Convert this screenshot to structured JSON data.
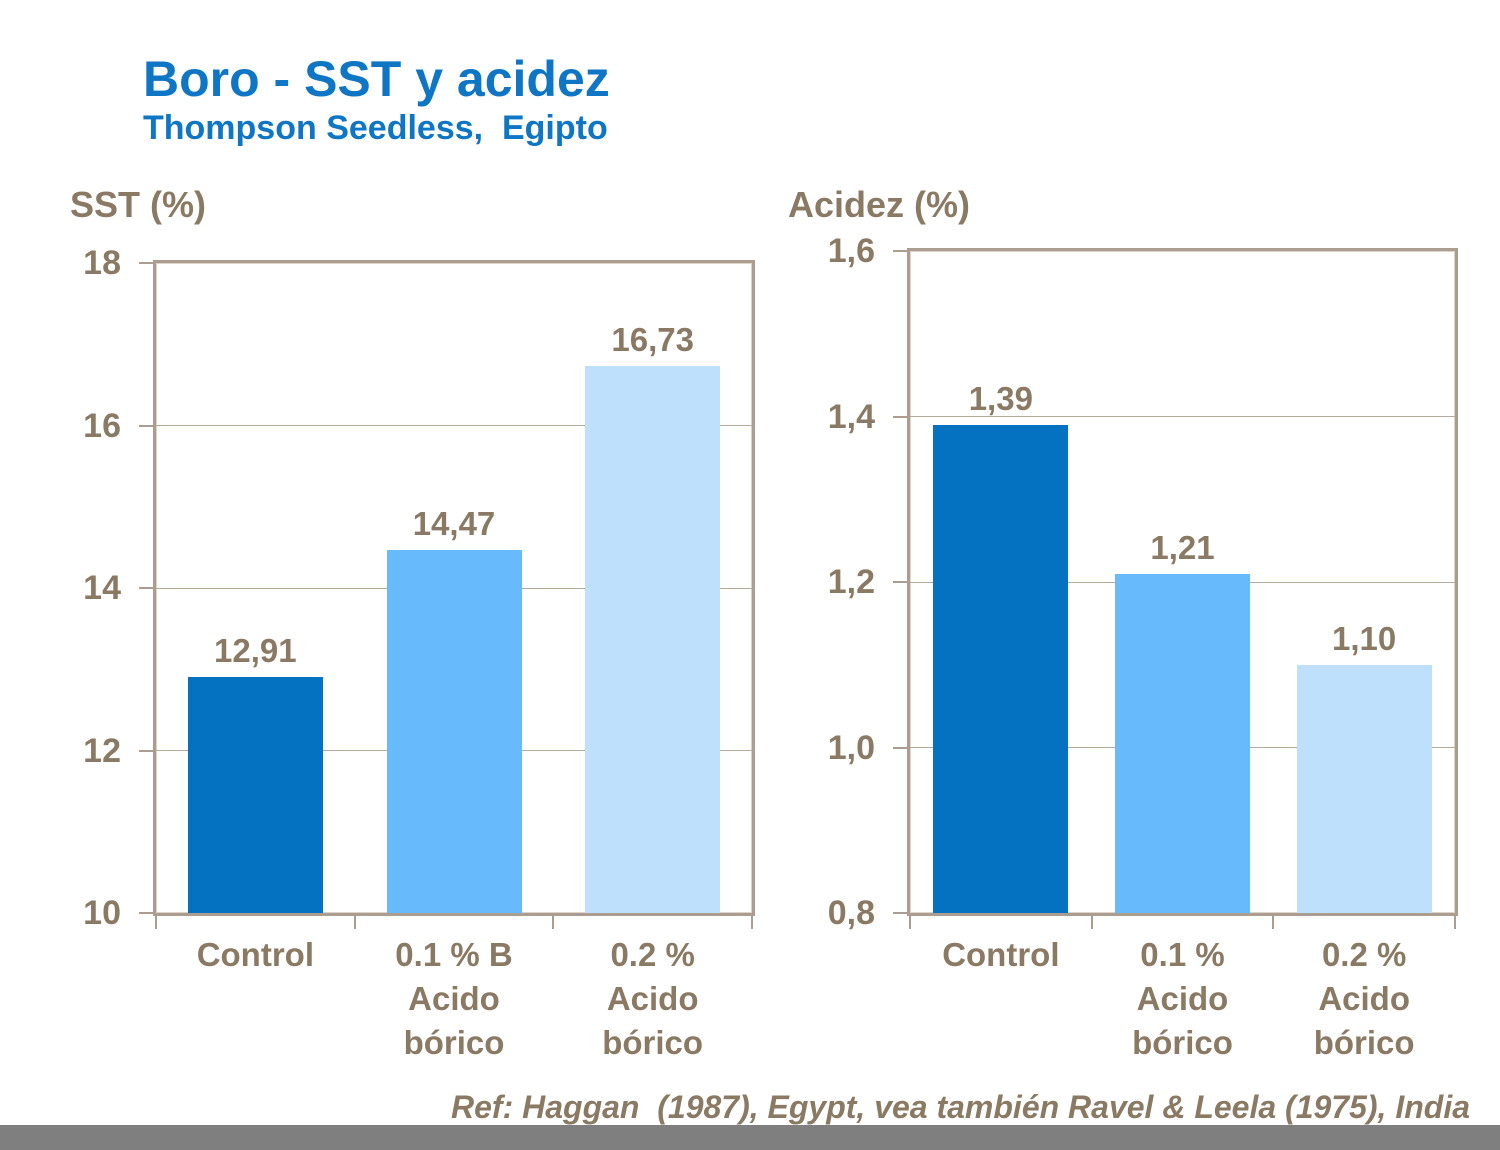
{
  "slide": {
    "title": "Boro - SST y acidez",
    "subtitle": "Thompson Seedless,  Egipto",
    "reference": "Ref: Haggan  (1987), Egypt, vea también Ravel & Leela (1975), India"
  },
  "colors": {
    "title_blue": "#0E76C4",
    "text_brown": "#8A7A64",
    "axis_line": "#AB9E90",
    "gridline": "#B5A99B",
    "footer_gray": "#7F7F7F",
    "bar_dark_blue": "#0571C1",
    "bar_medium_blue": "#67BBFC",
    "bar_light_blue": "#BEE0FC"
  },
  "chart_data": [
    {
      "type": "bar",
      "title": "SST (%)",
      "categories": [
        "Control",
        "0.1 % B Acido bórico",
        "0.2 % Acido bórico"
      ],
      "category_lines": [
        [
          "Control"
        ],
        [
          "0.1 % B",
          "Acido",
          "bórico"
        ],
        [
          "0.2 %",
          "Acido",
          "bórico"
        ]
      ],
      "values": [
        12.91,
        14.47,
        16.73
      ],
      "value_labels": [
        "12,91",
        "14,47",
        "16,73"
      ],
      "bar_colors": [
        "#0571C1",
        "#67BBFC",
        "#BEE0FC"
      ],
      "ylim": [
        10,
        18
      ],
      "ytick_interval": 2,
      "yticks": [
        "18",
        "16",
        "14",
        "12",
        "10"
      ],
      "grid": true,
      "legend": "none"
    },
    {
      "type": "bar",
      "title": "Acidez (%)",
      "categories": [
        "Control",
        "0.1 % Acido bórico",
        "0.2 % Acido bórico"
      ],
      "category_lines": [
        [
          "Control"
        ],
        [
          "0.1 %",
          "Acido",
          "bórico"
        ],
        [
          "0.2 %",
          "Acido",
          "bórico"
        ]
      ],
      "values": [
        1.39,
        1.21,
        1.1
      ],
      "value_labels": [
        "1,39",
        "1,21",
        "1,10"
      ],
      "bar_colors": [
        "#0571C1",
        "#67BBFC",
        "#BEE0FC"
      ],
      "ylim": [
        0.8,
        1.6
      ],
      "ytick_interval": 0.2,
      "yticks": [
        "1,6",
        "1,4",
        "1,2",
        "1,0",
        "0,8"
      ],
      "grid": true,
      "legend": "none"
    }
  ]
}
